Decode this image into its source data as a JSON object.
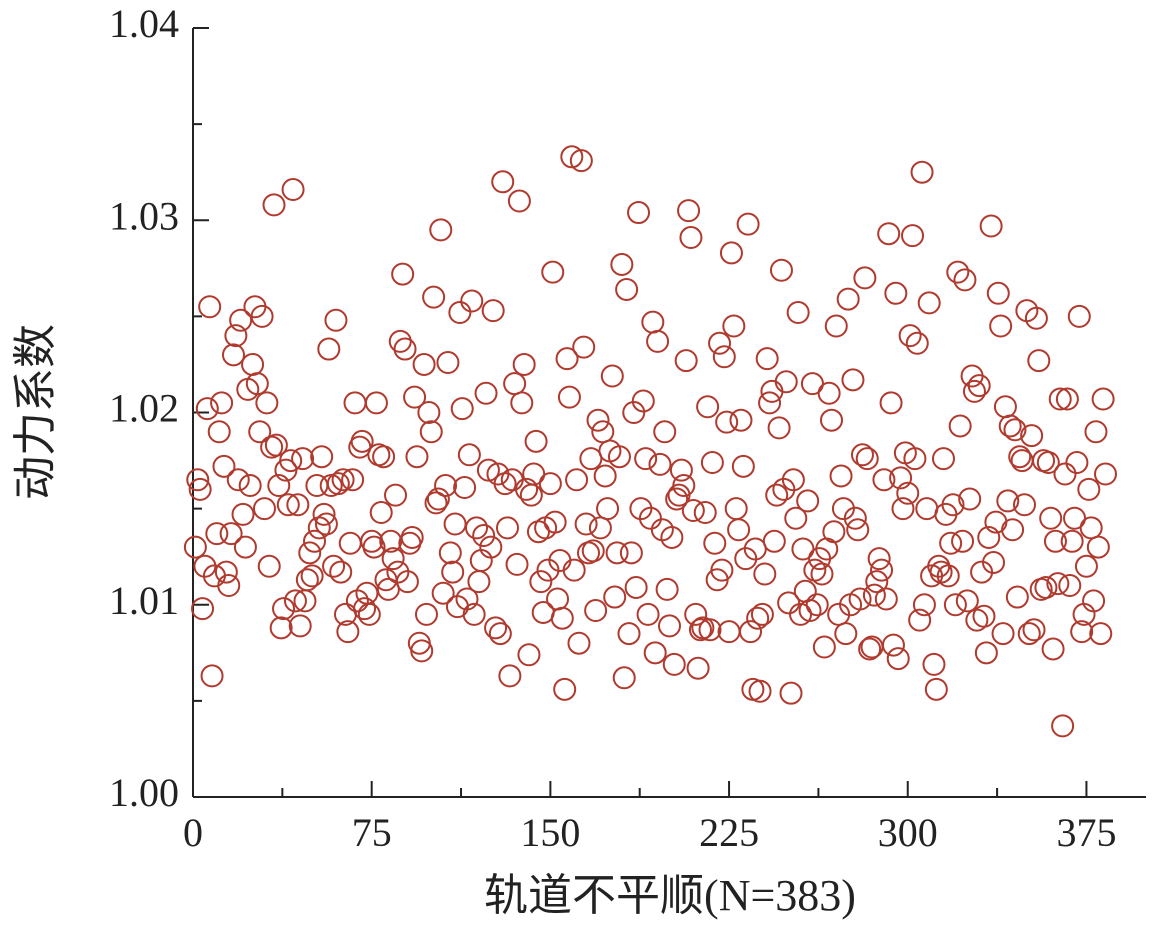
{
  "chart_data": {
    "type": "scatter",
    "xlabel": "轨道不平顺(N=383)",
    "ylabel": "动力系数",
    "xlim": [
      0,
      400
    ],
    "xticks": [
      0,
      75,
      150,
      225,
      300,
      375
    ],
    "ylim": [
      1.0,
      1.04
    ],
    "yticks": [
      {
        "value": 1.0,
        "label": "1.00"
      },
      1.01,
      1.02,
      1.03,
      1.04
    ],
    "series": [
      {
        "color": "#b03a2e",
        "x": [
          1,
          2,
          3,
          4,
          5,
          6,
          7,
          8,
          9,
          10,
          11,
          12,
          13,
          14,
          15,
          16,
          17,
          18,
          19,
          20,
          21,
          22,
          23,
          24,
          25,
          26,
          27,
          28,
          29,
          30,
          31,
          32,
          33,
          34,
          35,
          36,
          37,
          38,
          39,
          40,
          41,
          42,
          43,
          44,
          45,
          46,
          47,
          48,
          49,
          50,
          51,
          52,
          53,
          54,
          55,
          56,
          57,
          58,
          59,
          60,
          61,
          62,
          63,
          64,
          65,
          66,
          67,
          68,
          69,
          70,
          71,
          72,
          73,
          74,
          75,
          76,
          77,
          78,
          79,
          80,
          81,
          82,
          83,
          84,
          85,
          86,
          87,
          88,
          89,
          90,
          91,
          92,
          93,
          94,
          95,
          96,
          97,
          98,
          99,
          100,
          101,
          102,
          103,
          104,
          105,
          106,
          107,
          108,
          109,
          110,
          111,
          112,
          113,
          114,
          115,
          116,
          117,
          118,
          119,
          120,
          121,
          122,
          123,
          124,
          125,
          126,
          127,
          128,
          129,
          130,
          131,
          132,
          133,
          134,
          135,
          136,
          137,
          138,
          139,
          140,
          141,
          142,
          143,
          144,
          145,
          146,
          147,
          148,
          149,
          150,
          151,
          152,
          153,
          154,
          155,
          156,
          157,
          158,
          159,
          160,
          161,
          162,
          163,
          164,
          165,
          166,
          167,
          168,
          169,
          170,
          171,
          172,
          173,
          174,
          175,
          176,
          177,
          178,
          179,
          180,
          181,
          182,
          183,
          184,
          185,
          186,
          187,
          188,
          189,
          190,
          191,
          192,
          193,
          194,
          195,
          196,
          197,
          198,
          199,
          200,
          201,
          202,
          203,
          204,
          205,
          206,
          207,
          208,
          209,
          210,
          211,
          212,
          213,
          214,
          215,
          216,
          217,
          218,
          219,
          220,
          221,
          222,
          223,
          224,
          225,
          226,
          227,
          228,
          229,
          230,
          231,
          232,
          233,
          234,
          235,
          236,
          237,
          238,
          239,
          240,
          241,
          242,
          243,
          244,
          245,
          246,
          247,
          248,
          249,
          250,
          251,
          252,
          253,
          254,
          255,
          256,
          257,
          258,
          259,
          260,
          261,
          262,
          263,
          264,
          265,
          266,
          267,
          268,
          269,
          270,
          271,
          272,
          273,
          274,
          275,
          276,
          277,
          278,
          279,
          280,
          281,
          282,
          283,
          284,
          285,
          286,
          287,
          288,
          289,
          290,
          291,
          292,
          293,
          294,
          295,
          296,
          297,
          298,
          299,
          300,
          301,
          302,
          303,
          304,
          305,
          306,
          307,
          308,
          309,
          310,
          311,
          312,
          313,
          314,
          315,
          316,
          317,
          318,
          319,
          320,
          321,
          322,
          323,
          324,
          325,
          326,
          327,
          328,
          329,
          330,
          331,
          332,
          333,
          334,
          335,
          336,
          337,
          338,
          339,
          340,
          341,
          342,
          343,
          344,
          345,
          346,
          347,
          348,
          349,
          350,
          351,
          352,
          353,
          354,
          355,
          356,
          357,
          358,
          359,
          360,
          361,
          362,
          363,
          364,
          365,
          366,
          367,
          368,
          369,
          370,
          371,
          372,
          373,
          374,
          375,
          376,
          377,
          378,
          379,
          380,
          381,
          382,
          383
        ],
        "values": [
          1.013,
          1.0165,
          1.016,
          1.0098,
          1.012,
          1.0202,
          1.0255,
          1.0063,
          1.0115,
          1.0137,
          1.019,
          1.0205,
          1.0172,
          1.0117,
          1.011,
          1.0137,
          1.023,
          1.024,
          1.0165,
          1.0248,
          1.0147,
          1.013,
          1.0212,
          1.0162,
          1.0225,
          1.0255,
          1.0215,
          1.019,
          1.025,
          1.015,
          1.0205,
          1.012,
          1.0182,
          1.0308,
          1.0183,
          1.0162,
          1.0088,
          1.0098,
          1.017,
          1.0152,
          1.0175,
          1.0316,
          1.0102,
          1.0152,
          1.0089,
          1.0176,
          1.0102,
          1.0113,
          1.0127,
          1.0115,
          1.0133,
          1.0162,
          1.014,
          1.0177,
          1.0147,
          1.0142,
          1.0233,
          1.0162,
          1.012,
          1.0248,
          1.0163,
          1.0117,
          1.0165,
          1.0095,
          1.0086,
          1.0132,
          1.0165,
          1.0205,
          1.0102,
          1.0182,
          1.0185,
          1.0098,
          1.0106,
          1.0095,
          1.0133,
          1.013,
          1.0205,
          1.0178,
          1.0148,
          1.0177,
          1.0113,
          1.0108,
          1.0133,
          1.0124,
          1.0157,
          1.0117,
          1.0237,
          1.0272,
          1.0233,
          1.0112,
          1.0132,
          1.0135,
          1.0208,
          1.0177,
          1.008,
          1.0076,
          1.0225,
          1.0095,
          1.02,
          1.019,
          1.026,
          1.0153,
          1.0155,
          1.0295,
          1.0106,
          1.0162,
          1.0226,
          1.0127,
          1.0117,
          1.0142,
          1.0099,
          1.0252,
          1.0202,
          1.0161,
          1.0103,
          1.0178,
          1.0258,
          1.0095,
          1.014,
          1.0112,
          1.0123,
          1.0136,
          1.021,
          1.017,
          1.013,
          1.0253,
          1.0088,
          1.0168,
          1.0085,
          1.032,
          1.0163,
          1.014,
          1.0063,
          1.0165,
          1.0215,
          1.0121,
          1.031,
          1.0205,
          1.0225,
          1.016,
          1.0074,
          1.0157,
          1.0168,
          1.0185,
          1.0138,
          1.0112,
          1.0096,
          1.014,
          1.0118,
          1.0163,
          1.0273,
          1.0143,
          1.0103,
          1.0123,
          1.0093,
          1.0056,
          1.0228,
          1.0208,
          1.0333,
          1.0118,
          1.0165,
          1.008,
          1.0331,
          1.0234,
          1.0142,
          1.0127,
          1.0176,
          1.0128,
          1.0097,
          1.0196,
          1.014,
          1.019,
          1.0167,
          1.015,
          1.018,
          1.0219,
          1.0104,
          1.0127,
          1.0177,
          1.0277,
          1.0062,
          1.0264,
          1.0085,
          1.0127,
          1.02,
          1.0109,
          1.0304,
          1.015,
          1.0206,
          1.0176,
          1.0095,
          1.0145,
          1.0247,
          1.0075,
          1.0237,
          1.0173,
          1.0139,
          1.019,
          1.0108,
          1.0089,
          1.0135,
          1.0069,
          1.0155,
          1.0157,
          1.017,
          1.0162,
          1.0227,
          1.0305,
          1.0291,
          1.0149,
          1.0095,
          1.0067,
          1.0087,
          1.0088,
          1.0148,
          1.0203,
          1.0087,
          1.0174,
          1.0132,
          1.0113,
          1.0236,
          1.0118,
          1.0229,
          1.0195,
          1.0086,
          1.0283,
          1.0245,
          1.015,
          1.0139,
          1.0196,
          1.0172,
          1.0124,
          1.0298,
          1.0086,
          1.0056,
          1.0129,
          1.0093,
          1.0055,
          1.0095,
          1.0116,
          1.0228,
          1.0205,
          1.0211,
          1.0133,
          1.0157,
          1.0192,
          1.0274,
          1.016,
          1.0216,
          1.0101,
          1.0054,
          1.0165,
          1.0145,
          1.0252,
          1.0095,
          1.0129,
          1.0107,
          1.0154,
          1.0097,
          1.0215,
          1.0118,
          1.01,
          1.0124,
          1.0116,
          1.0078,
          1.0129,
          1.021,
          1.0196,
          1.0138,
          1.0245,
          1.0095,
          1.0167,
          1.015,
          1.0085,
          1.0259,
          1.01,
          1.0217,
          1.0145,
          1.0139,
          1.0103,
          1.0178,
          1.027,
          1.0176,
          1.0077,
          1.0078,
          1.0105,
          1.0112,
          1.0124,
          1.0118,
          1.0165,
          1.0103,
          1.0293,
          1.0205,
          1.0079,
          1.0262,
          1.0072,
          1.0166,
          1.015,
          1.0179,
          1.0158,
          1.024,
          1.0292,
          1.0176,
          1.0236,
          1.0092,
          1.0325,
          1.01,
          1.015,
          1.0257,
          1.0115,
          1.0069,
          1.0056,
          1.012,
          1.0117,
          1.0176,
          1.0147,
          1.0115,
          1.0132,
          1.0152,
          1.01,
          1.0273,
          1.0193,
          1.0133,
          1.0269,
          1.0102,
          1.0155,
          1.0219,
          1.0211,
          1.0092,
          1.0214,
          1.0117,
          1.0094,
          1.0075,
          1.0135,
          1.0297,
          1.0122,
          1.0143,
          1.0262,
          1.0245,
          1.0085,
          1.0203,
          1.0154,
          1.0193,
          1.0139,
          1.0191,
          1.0104,
          1.0177,
          1.0175,
          1.0152,
          1.0253,
          1.0085,
          1.0188,
          1.0087,
          1.0249,
          1.0227,
          1.0108,
          1.0175,
          1.0109,
          1.0174,
          1.0145,
          1.0077,
          1.0133,
          1.0111,
          1.0207,
          1.0037,
          1.0168,
          1.0207,
          1.011,
          1.0133,
          1.0145,
          1.0174,
          1.025,
          1.0086,
          1.0095,
          1.012,
          1.016,
          1.014,
          1.0102,
          1.019,
          1.013,
          1.0085,
          1.0207,
          1.0168
        ]
      }
    ]
  }
}
